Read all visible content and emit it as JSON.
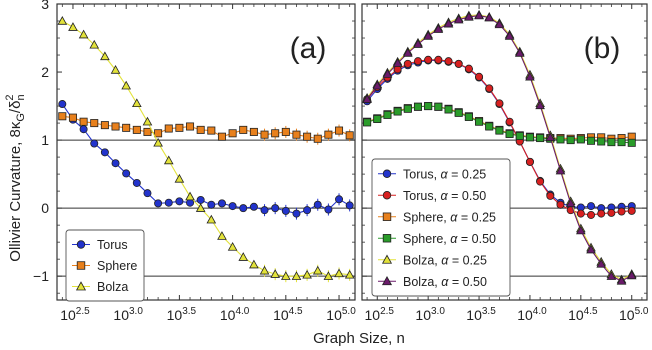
{
  "figure": {
    "ylabel_main": "Ollivier Curvature, 8κ",
    "ylabel_sub": "G",
    "ylabel_frac": "/δ",
    "ylabel_sup": "2",
    "ylabel_sub2": "n",
    "xlabel": "Graph Size, n"
  },
  "chart_data": [
    {
      "type": "line",
      "panel_label": "(a)",
      "xscale": "log10",
      "xlim": [
        2.35,
        5.15
      ],
      "ylim": [
        -1.35,
        3.0
      ],
      "yticks": [
        -1,
        0,
        1,
        2,
        3
      ],
      "ytick_labels": [
        "−1",
        "0",
        "1",
        "2",
        "3"
      ],
      "xticks": [
        2.5,
        3.0,
        3.5,
        4.0,
        4.5,
        5.0
      ],
      "xtick_base": "10",
      "xtick_exps": [
        "2.5",
        "3.0",
        "3.5",
        "4.0",
        "4.5",
        "5.0"
      ],
      "reference_lines": [
        1,
        0,
        -1
      ],
      "legend_position": "bottom-left",
      "series": [
        {
          "name": "Torus",
          "color": "#2233cc",
          "marker": "circle",
          "x": [
            2.4,
            2.5,
            2.6,
            2.7,
            2.8,
            2.9,
            3.0,
            3.1,
            3.2,
            3.3,
            3.4,
            3.5,
            3.6,
            3.7,
            3.8,
            3.9,
            4.0,
            4.1,
            4.2,
            4.3,
            4.4,
            4.5,
            4.6,
            4.7,
            4.8,
            4.9,
            5.0,
            5.1
          ],
          "y": [
            1.53,
            1.3,
            1.16,
            0.95,
            0.82,
            0.66,
            0.51,
            0.37,
            0.22,
            0.07,
            0.08,
            0.1,
            0.08,
            0.12,
            0.05,
            0.07,
            0.03,
            0.0,
            0.02,
            -0.03,
            0.0,
            -0.04,
            -0.08,
            -0.03,
            0.05,
            -0.02,
            0.13,
            0.04
          ]
        },
        {
          "name": "Sphere",
          "color": "#e8801c",
          "marker": "square",
          "x": [
            2.4,
            2.5,
            2.6,
            2.7,
            2.8,
            2.9,
            3.0,
            3.1,
            3.2,
            3.3,
            3.4,
            3.5,
            3.6,
            3.7,
            3.8,
            3.9,
            4.0,
            4.1,
            4.2,
            4.3,
            4.4,
            4.5,
            4.6,
            4.7,
            4.8,
            4.9,
            5.0,
            5.1
          ],
          "y": [
            1.35,
            1.33,
            1.27,
            1.25,
            1.22,
            1.2,
            1.18,
            1.15,
            1.12,
            1.1,
            1.17,
            1.18,
            1.2,
            1.15,
            1.14,
            1.05,
            1.1,
            1.15,
            1.12,
            1.08,
            1.1,
            1.12,
            1.08,
            1.05,
            1.02,
            1.08,
            1.14,
            1.07
          ]
        },
        {
          "name": "Bolza",
          "color": "#e2e23a",
          "marker": "triangle",
          "x": [
            2.4,
            2.5,
            2.6,
            2.7,
            2.8,
            2.9,
            3.0,
            3.1,
            3.2,
            3.3,
            3.4,
            3.5,
            3.6,
            3.7,
            3.8,
            3.9,
            4.0,
            4.1,
            4.2,
            4.3,
            4.4,
            4.5,
            4.6,
            4.7,
            4.8,
            4.9,
            5.0,
            5.1
          ],
          "y": [
            2.75,
            2.66,
            2.55,
            2.4,
            2.23,
            2.03,
            1.8,
            1.54,
            1.27,
            0.96,
            0.7,
            0.43,
            0.17,
            0.0,
            -0.17,
            -0.41,
            -0.57,
            -0.72,
            -0.83,
            -0.92,
            -0.97,
            -1.0,
            -1.0,
            -0.98,
            -0.92,
            -1.0,
            -0.96,
            -0.98
          ]
        }
      ]
    },
    {
      "type": "line",
      "panel_label": "(b)",
      "xscale": "log10",
      "xlim": [
        2.35,
        5.15
      ],
      "ylim": [
        -1.35,
        3.0
      ],
      "xticks": [
        2.5,
        3.0,
        3.5,
        4.0,
        4.5,
        5.0
      ],
      "xtick_base": "10",
      "xtick_exps": [
        "2.5",
        "3.0",
        "3.5",
        "4.0",
        "4.5",
        "5.0"
      ],
      "reference_lines": [
        1,
        0,
        -1
      ],
      "legend_position": "bottom-left",
      "series": [
        {
          "name": "Torus, α = 0.25",
          "label_prefix": "Torus, ",
          "label_suffix": " = 0.25",
          "color": "#2233cc",
          "marker": "circle",
          "x": [
            2.4,
            2.5,
            2.6,
            2.7,
            2.8,
            2.9,
            3.0,
            3.1,
            3.2,
            3.3,
            3.4,
            3.5,
            3.6,
            3.7,
            3.8,
            3.9,
            4.0,
            4.1,
            4.2,
            4.3,
            4.4,
            4.5,
            4.6,
            4.7,
            4.8,
            4.9,
            5.0
          ],
          "y": [
            1.57,
            1.75,
            1.9,
            2.02,
            2.1,
            2.14,
            2.17,
            2.17,
            2.15,
            2.12,
            2.04,
            1.92,
            1.75,
            1.53,
            1.26,
            0.98,
            0.68,
            0.4,
            0.2,
            0.08,
            0.02,
            0.01,
            0.03,
            0.0,
            0.01,
            0.02,
            0.03
          ]
        },
        {
          "name": "Torus, α = 0.50",
          "label_prefix": "Torus, ",
          "label_suffix": " = 0.50",
          "color": "#d82020",
          "marker": "circle",
          "x": [
            2.4,
            2.5,
            2.6,
            2.7,
            2.8,
            2.9,
            3.0,
            3.1,
            3.2,
            3.3,
            3.4,
            3.5,
            3.6,
            3.7,
            3.8,
            3.9,
            4.0,
            4.1,
            4.2,
            4.3,
            4.4,
            4.5,
            4.6,
            4.7,
            4.8,
            4.9,
            5.0
          ],
          "y": [
            1.6,
            1.78,
            1.92,
            2.04,
            2.12,
            2.16,
            2.18,
            2.18,
            2.16,
            2.12,
            2.05,
            1.93,
            1.76,
            1.54,
            1.27,
            0.98,
            0.68,
            0.39,
            0.18,
            0.05,
            -0.03,
            -0.08,
            -0.1,
            -0.08,
            -0.07,
            -0.05,
            -0.04
          ]
        },
        {
          "name": "Sphere, α = 0.25",
          "label_prefix": "Sphere, ",
          "label_suffix": " = 0.25",
          "color": "#e8801c",
          "marker": "square",
          "x": [
            2.4,
            2.5,
            2.6,
            2.7,
            2.8,
            2.9,
            3.0,
            3.1,
            3.2,
            3.3,
            3.4,
            3.5,
            3.6,
            3.7,
            3.8,
            3.9,
            4.0,
            4.1,
            4.2,
            4.3,
            4.4,
            4.5,
            4.6,
            4.7,
            4.8,
            4.9,
            5.0
          ],
          "y": [
            1.27,
            1.32,
            1.38,
            1.43,
            1.47,
            1.49,
            1.5,
            1.49,
            1.46,
            1.41,
            1.35,
            1.28,
            1.21,
            1.15,
            1.1,
            1.07,
            1.05,
            1.04,
            1.03,
            1.03,
            1.02,
            1.03,
            1.04,
            1.04,
            1.02,
            1.03,
            1.05
          ]
        },
        {
          "name": "Sphere, α = 0.50",
          "label_prefix": "Sphere, ",
          "label_suffix": " = 0.50",
          "color": "#2a9c2a",
          "marker": "square",
          "x": [
            2.4,
            2.5,
            2.6,
            2.7,
            2.8,
            2.9,
            3.0,
            3.1,
            3.2,
            3.3,
            3.4,
            3.5,
            3.6,
            3.7,
            3.8,
            3.9,
            4.0,
            4.1,
            4.2,
            4.3,
            4.4,
            4.5,
            4.6,
            4.7,
            4.8,
            4.9,
            5.0
          ],
          "y": [
            1.26,
            1.31,
            1.37,
            1.42,
            1.46,
            1.49,
            1.5,
            1.49,
            1.45,
            1.4,
            1.34,
            1.27,
            1.2,
            1.14,
            1.09,
            1.06,
            1.04,
            1.03,
            1.02,
            1.01,
            1.0,
            1.01,
            0.99,
            0.98,
            0.97,
            0.97,
            0.96
          ]
        },
        {
          "name": "Bolza, α = 0.25",
          "label_prefix": "Bolza, ",
          "label_suffix": " = 0.25",
          "color": "#e2e23a",
          "marker": "triangle",
          "x": [
            2.4,
            2.5,
            2.6,
            2.7,
            2.8,
            2.9,
            3.0,
            3.1,
            3.2,
            3.3,
            3.4,
            3.5,
            3.6,
            3.7,
            3.8,
            3.9,
            4.0,
            4.1,
            4.2,
            4.3,
            4.4,
            4.5,
            4.6,
            4.7,
            4.8,
            4.9,
            5.0
          ],
          "y": [
            1.62,
            1.82,
            1.99,
            2.15,
            2.3,
            2.43,
            2.55,
            2.65,
            2.73,
            2.79,
            2.83,
            2.84,
            2.81,
            2.72,
            2.55,
            2.3,
            1.96,
            1.54,
            1.07,
            0.58,
            0.1,
            -0.3,
            -0.58,
            -0.79,
            -0.97,
            -1.05,
            -0.97
          ]
        },
        {
          "name": "Bolza, α = 0.50",
          "label_prefix": "Bolza, ",
          "label_suffix": " = 0.50",
          "color": "#6a1a6a",
          "marker": "triangle",
          "x": [
            2.4,
            2.5,
            2.6,
            2.7,
            2.8,
            2.9,
            3.0,
            3.1,
            3.2,
            3.3,
            3.4,
            3.5,
            3.6,
            3.7,
            3.8,
            3.9,
            4.0,
            4.1,
            4.2,
            4.3,
            4.4,
            4.5,
            4.6,
            4.7,
            4.8,
            4.9,
            5.0
          ],
          "y": [
            1.6,
            1.8,
            1.97,
            2.13,
            2.28,
            2.41,
            2.53,
            2.63,
            2.71,
            2.77,
            2.81,
            2.83,
            2.8,
            2.7,
            2.53,
            2.28,
            1.93,
            1.51,
            1.04,
            0.55,
            0.07,
            -0.33,
            -0.61,
            -0.82,
            -1.0,
            -1.07,
            -0.99
          ]
        }
      ]
    }
  ]
}
